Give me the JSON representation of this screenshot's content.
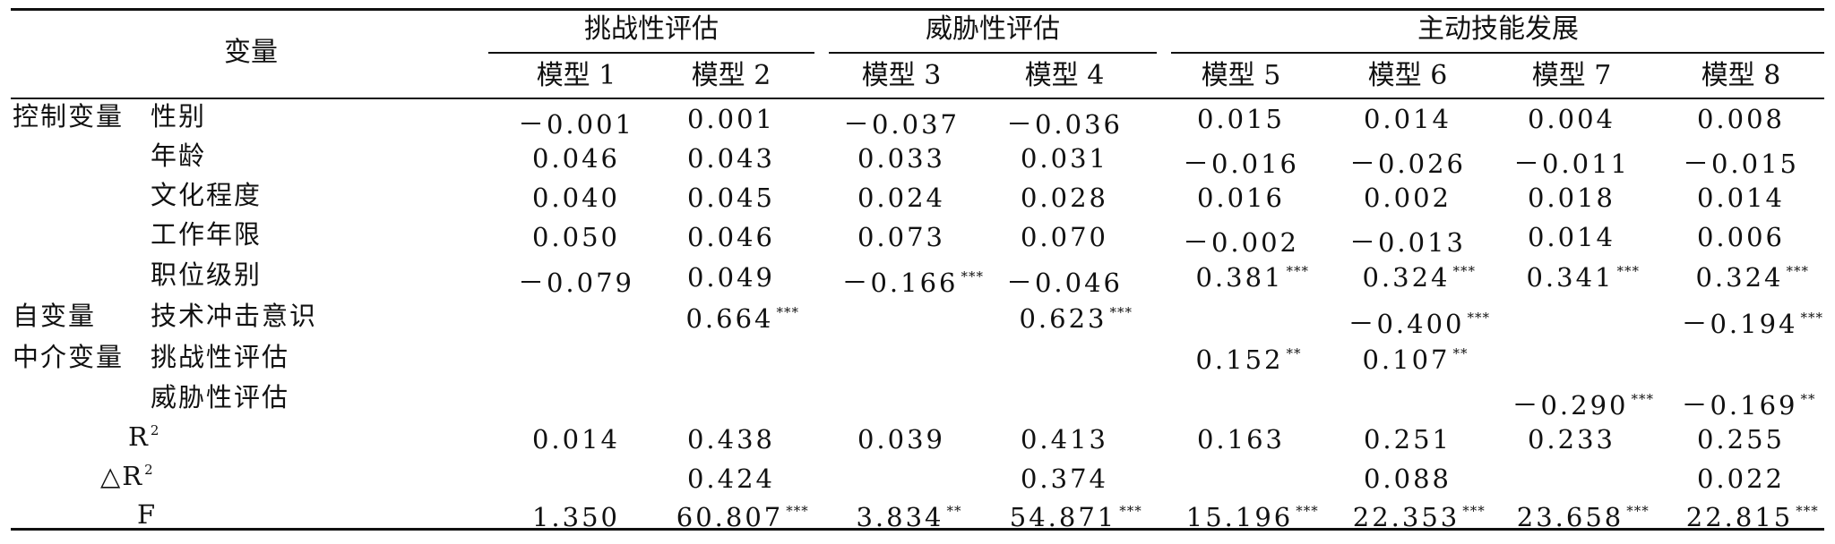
{
  "header": {
    "variable_label": "变量",
    "groups": [
      "挑战性评估",
      "威胁性评估",
      "主动技能发展"
    ],
    "models": [
      "模型 1",
      "模型 2",
      "模型 3",
      "模型 4",
      "模型 5",
      "模型 6",
      "模型 7",
      "模型 8"
    ]
  },
  "rows": [
    {
      "group": "控制变量",
      "label": "性别",
      "cells": [
        {
          "v": "－0.001",
          "s": ""
        },
        {
          "v": "0.001",
          "s": ""
        },
        {
          "v": "－0.037",
          "s": ""
        },
        {
          "v": "－0.036",
          "s": ""
        },
        {
          "v": "0.015",
          "s": ""
        },
        {
          "v": "0.014",
          "s": ""
        },
        {
          "v": "0.004",
          "s": ""
        },
        {
          "v": "0.008",
          "s": ""
        }
      ]
    },
    {
      "group": "",
      "label": "年龄",
      "cells": [
        {
          "v": "0.046",
          "s": ""
        },
        {
          "v": "0.043",
          "s": ""
        },
        {
          "v": "0.033",
          "s": ""
        },
        {
          "v": "0.031",
          "s": ""
        },
        {
          "v": "－0.016",
          "s": ""
        },
        {
          "v": "－0.026",
          "s": ""
        },
        {
          "v": "－0.011",
          "s": ""
        },
        {
          "v": "－0.015",
          "s": ""
        }
      ]
    },
    {
      "group": "",
      "label": "文化程度",
      "cells": [
        {
          "v": "0.040",
          "s": ""
        },
        {
          "v": "0.045",
          "s": ""
        },
        {
          "v": "0.024",
          "s": ""
        },
        {
          "v": "0.028",
          "s": ""
        },
        {
          "v": "0.016",
          "s": ""
        },
        {
          "v": "0.002",
          "s": ""
        },
        {
          "v": "0.018",
          "s": ""
        },
        {
          "v": "0.014",
          "s": ""
        }
      ]
    },
    {
      "group": "",
      "label": "工作年限",
      "cells": [
        {
          "v": "0.050",
          "s": ""
        },
        {
          "v": "0.046",
          "s": ""
        },
        {
          "v": "0.073",
          "s": ""
        },
        {
          "v": "0.070",
          "s": ""
        },
        {
          "v": "－0.002",
          "s": ""
        },
        {
          "v": "－0.013",
          "s": ""
        },
        {
          "v": "0.014",
          "s": ""
        },
        {
          "v": "0.006",
          "s": ""
        }
      ]
    },
    {
      "group": "",
      "label": "职位级别",
      "cells": [
        {
          "v": "－0.079",
          "s": ""
        },
        {
          "v": "0.049",
          "s": ""
        },
        {
          "v": "－0.166",
          "s": "***"
        },
        {
          "v": "－0.046",
          "s": ""
        },
        {
          "v": "0.381",
          "s": "***"
        },
        {
          "v": "0.324",
          "s": "***"
        },
        {
          "v": "0.341",
          "s": "***"
        },
        {
          "v": "0.324",
          "s": "***"
        }
      ]
    },
    {
      "group": "自变量",
      "label": "技术冲击意识",
      "cells": [
        {
          "v": "",
          "s": ""
        },
        {
          "v": "0.664",
          "s": "***"
        },
        {
          "v": "",
          "s": ""
        },
        {
          "v": "0.623",
          "s": "***"
        },
        {
          "v": "",
          "s": ""
        },
        {
          "v": "－0.400",
          "s": "***"
        },
        {
          "v": "",
          "s": ""
        },
        {
          "v": "－0.194",
          "s": "***"
        }
      ]
    },
    {
      "group": "中介变量",
      "label": "挑战性评估",
      "cells": [
        {
          "v": "",
          "s": ""
        },
        {
          "v": "",
          "s": ""
        },
        {
          "v": "",
          "s": ""
        },
        {
          "v": "",
          "s": ""
        },
        {
          "v": "0.152",
          "s": "**"
        },
        {
          "v": "0.107",
          "s": "**"
        },
        {
          "v": "",
          "s": ""
        },
        {
          "v": "",
          "s": ""
        }
      ]
    },
    {
      "group": "",
      "label": "威胁性评估",
      "cells": [
        {
          "v": "",
          "s": ""
        },
        {
          "v": "",
          "s": ""
        },
        {
          "v": "",
          "s": ""
        },
        {
          "v": "",
          "s": ""
        },
        {
          "v": "",
          "s": ""
        },
        {
          "v": "",
          "s": ""
        },
        {
          "v": "－0.290",
          "s": "***"
        },
        {
          "v": "－0.169",
          "s": "**"
        }
      ]
    },
    {
      "group": "",
      "label": "R",
      "label_sup": "2",
      "cells": [
        {
          "v": "0.014",
          "s": ""
        },
        {
          "v": "0.438",
          "s": ""
        },
        {
          "v": "0.039",
          "s": ""
        },
        {
          "v": "0.413",
          "s": ""
        },
        {
          "v": "0.163",
          "s": ""
        },
        {
          "v": "0.251",
          "s": ""
        },
        {
          "v": "0.233",
          "s": ""
        },
        {
          "v": "0.255",
          "s": ""
        }
      ]
    },
    {
      "group": "",
      "label": "△R",
      "label_sup": "2",
      "cells": [
        {
          "v": "",
          "s": ""
        },
        {
          "v": "0.424",
          "s": ""
        },
        {
          "v": "",
          "s": ""
        },
        {
          "v": "0.374",
          "s": ""
        },
        {
          "v": "",
          "s": ""
        },
        {
          "v": "0.088",
          "s": ""
        },
        {
          "v": "",
          "s": ""
        },
        {
          "v": "0.022",
          "s": ""
        }
      ]
    },
    {
      "group": "",
      "label": "F",
      "cells": [
        {
          "v": "1.350",
          "s": ""
        },
        {
          "v": "60.807",
          "s": "***"
        },
        {
          "v": "3.834",
          "s": "**"
        },
        {
          "v": "54.871",
          "s": "***"
        },
        {
          "v": "15.196",
          "s": "***"
        },
        {
          "v": "22.353",
          "s": "***"
        },
        {
          "v": "23.658",
          "s": "***"
        },
        {
          "v": "22.815",
          "s": "***"
        }
      ]
    }
  ]
}
